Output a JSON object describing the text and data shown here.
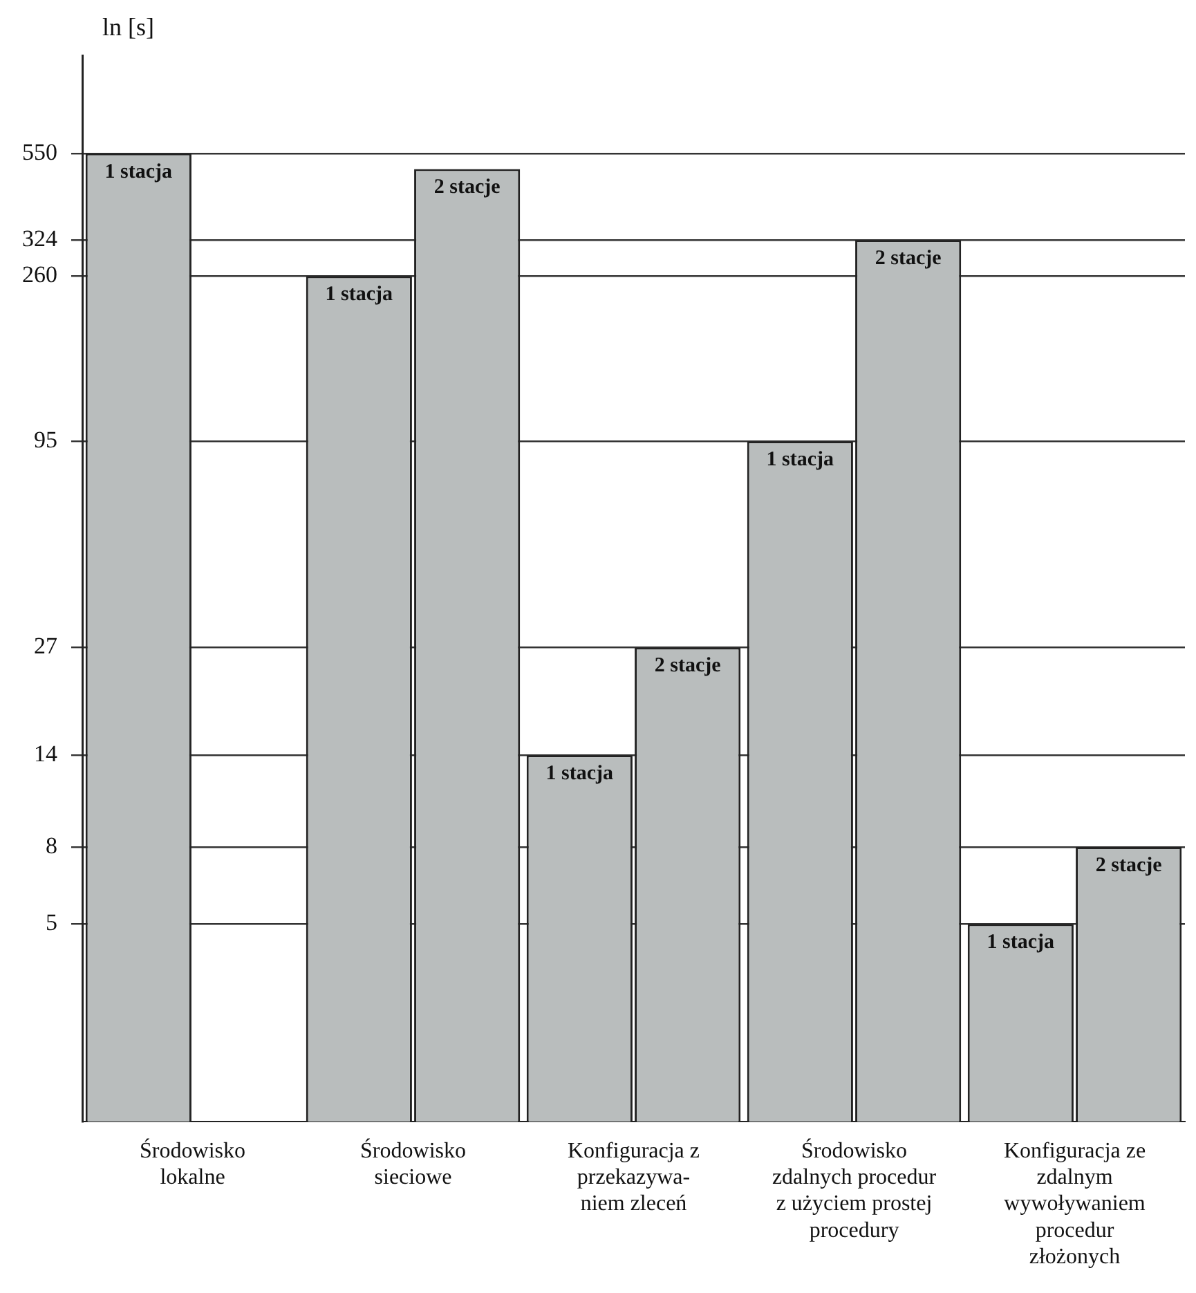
{
  "chart_data": {
    "type": "bar",
    "ylabel": "ln [s]",
    "categories": [
      "Środowisko\nlokalne",
      "Środowisko\nsieciowe",
      "Konfiguracja z\nprzekazywa-\nniem zleceń",
      "Środowisko\nzdalnych procedur\nz użyciem prostej\nprocedury",
      "Konfiguracja ze\nzdalnym\nwywoływaniem\nprocedur\nzłożonych"
    ],
    "series": [
      {
        "name": "1 stacja",
        "color": "#b9bdbd",
        "values": [
          550,
          260,
          14,
          95,
          5
        ]
      },
      {
        "name": "2 stacje",
        "color": "#b9bdbd",
        "values": [
          null,
          500,
          27,
          324,
          8
        ]
      }
    ],
    "log": true,
    "ylim": [
      1.5,
      1000
    ],
    "yticks": [
      5,
      8,
      14,
      27,
      95,
      260,
      324,
      550
    ],
    "grid": "y",
    "legend": false
  }
}
